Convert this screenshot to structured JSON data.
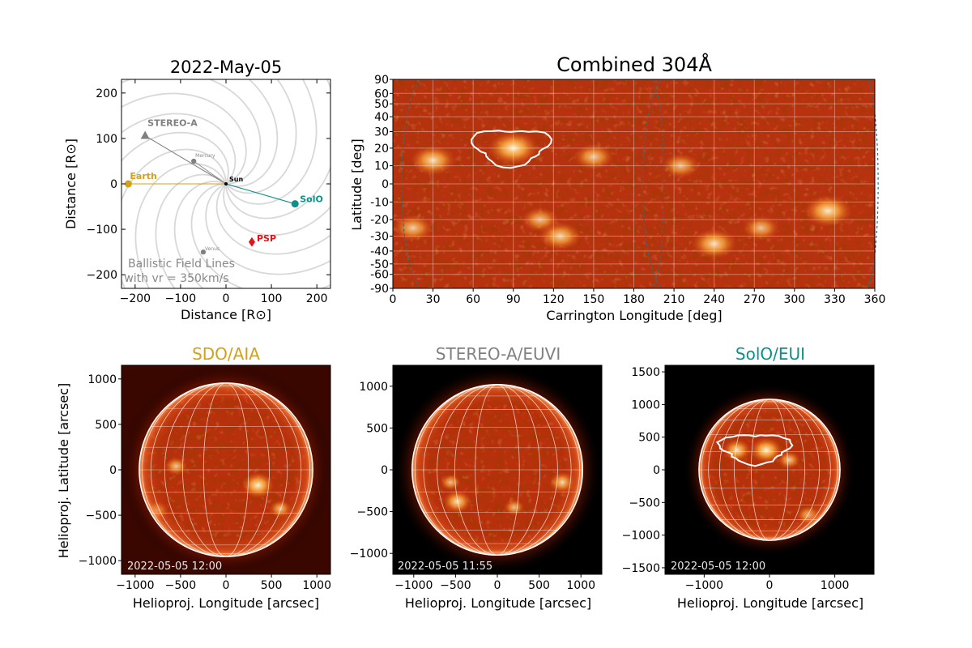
{
  "colors": {
    "earth": "#d4a017",
    "stereo": "#808080",
    "solo": "#0e8f88",
    "psp": "#e0141b",
    "field_lines": "#d8d8d8",
    "sun_map_dark": "#5a0f00",
    "sun_map_mid": "#c63a10",
    "sun_map_bright": "#ffe3a0"
  },
  "chart_data": [
    {
      "type": "scatter",
      "title": "2022-May-05",
      "xlabel": "Distance [R⊙]",
      "ylabel": "Distance [R⊙]",
      "xlim": [
        -230,
        230
      ],
      "ylim": [
        -230,
        230
      ],
      "xticks": [
        -200,
        -100,
        0,
        100,
        200
      ],
      "yticks": [
        -200,
        -100,
        0,
        100,
        200
      ],
      "xtick_labels": [
        "−200",
        "−100",
        "0",
        "100",
        "200"
      ],
      "ytick_labels": [
        "−200",
        "−100",
        "0",
        "100",
        "200"
      ],
      "annotation_line1": "Ballistic Field Lines",
      "annotation_line2": "with vr = 350km/s",
      "points": [
        {
          "name": "Sun",
          "x": 0,
          "y": 0,
          "marker": "circle",
          "color": "#000000"
        },
        {
          "name": "Earth",
          "x": -215,
          "y": 0,
          "marker": "circle",
          "color": "#d4a017"
        },
        {
          "name": "STEREO-A",
          "x": -178,
          "y": 106,
          "marker": "triangle",
          "color": "#808080"
        },
        {
          "name": "Mercury",
          "x": -71,
          "y": 50,
          "marker": "circle",
          "color": "#808080"
        },
        {
          "name": "SolO",
          "x": 152,
          "y": -44,
          "marker": "circle",
          "color": "#0e8f88"
        },
        {
          "name": "PSP",
          "x": 57,
          "y": -128,
          "marker": "diamond",
          "color": "#e0141b"
        },
        {
          "name": "Venus",
          "x": -50,
          "y": -150,
          "marker": "circle",
          "color": "#808080"
        }
      ],
      "spiral_count": 16
    },
    {
      "type": "heatmap",
      "title": "Combined 304Å",
      "xlabel": "Carrington Longitude [deg]",
      "ylabel": "Latitude [deg]",
      "xlim": [
        0,
        360
      ],
      "ylim": [
        -90,
        90
      ],
      "xticks": [
        0,
        30,
        60,
        90,
        120,
        150,
        180,
        210,
        240,
        270,
        300,
        330,
        360
      ],
      "yticks": [
        90,
        60,
        50,
        40,
        30,
        20,
        10,
        0,
        -10,
        -20,
        -30,
        -40,
        -50,
        -60,
        -90
      ],
      "ytick_labels": [
        "90",
        "60",
        "50",
        "40",
        "30",
        "20",
        "10",
        "0",
        "-10",
        "-20",
        "-30",
        "-40",
        "-50",
        "-60",
        "-90"
      ],
      "grid": true,
      "bright_regions": [
        {
          "lon": 30,
          "lat": 13,
          "strength": 0.8
        },
        {
          "lon": 90,
          "lat": 20,
          "strength": 1.0
        },
        {
          "lon": 150,
          "lat": 15,
          "strength": 0.6
        },
        {
          "lon": 215,
          "lat": 10,
          "strength": 0.5
        },
        {
          "lon": 325,
          "lat": -15,
          "strength": 0.9
        },
        {
          "lon": 15,
          "lat": -25,
          "strength": 0.6
        },
        {
          "lon": 110,
          "lat": -20,
          "strength": 0.5
        },
        {
          "lon": 125,
          "lat": -30,
          "strength": 0.7
        },
        {
          "lon": 240,
          "lat": -35,
          "strength": 0.8
        },
        {
          "lon": 275,
          "lat": -25,
          "strength": 0.5
        }
      ]
    },
    {
      "type": "heatmap",
      "title": "SDO/AIA",
      "title_color": "#d4a017",
      "timestamp": "2022-05-05 12:00",
      "xlabel": "Helioproj. Longitude [arcsec]",
      "ylabel": "Helioproj. Latitude [arcsec]",
      "xlim": [
        -1150,
        1150
      ],
      "ylim": [
        -1150,
        1150
      ],
      "xticks": [
        -1000,
        -500,
        0,
        500,
        1000
      ],
      "yticks": [
        -1000,
        -500,
        0,
        500,
        1000
      ],
      "xtick_labels": [
        "−1000",
        "−500",
        "0",
        "500",
        "1000"
      ],
      "ytick_labels": [
        "−1000",
        "−500",
        "0",
        "500",
        "1000"
      ],
      "disk_radius_arcsec": 955,
      "dark_background": false,
      "bright_spots": [
        {
          "x": 350,
          "y": -170,
          "s": 1.0
        },
        {
          "x": -770,
          "y": -450,
          "s": 0.6
        },
        {
          "x": -550,
          "y": 40,
          "s": 0.5
        },
        {
          "x": 600,
          "y": -430,
          "s": 0.5
        }
      ]
    },
    {
      "type": "heatmap",
      "title": "STEREO-A/EUVI",
      "title_color": "#808080",
      "timestamp": "2022-05-05 11:55",
      "xlabel": "Helioproj. Longitude [arcsec]",
      "ylabel": "",
      "xlim": [
        -1250,
        1250
      ],
      "ylim": [
        -1250,
        1250
      ],
      "xticks": [
        -1000,
        -500,
        0,
        500,
        1000
      ],
      "yticks": [
        -1000,
        -500,
        0,
        500,
        1000
      ],
      "xtick_labels": [
        "−1000",
        "−500",
        "0",
        "500",
        "1000"
      ],
      "ytick_labels": [
        "−1000",
        "−500",
        "0",
        "500",
        "1000"
      ],
      "disk_radius_arcsec": 1020,
      "dark_background": true,
      "bright_spots": [
        {
          "x": -480,
          "y": -380,
          "s": 0.8
        },
        {
          "x": 780,
          "y": -150,
          "s": 0.7
        },
        {
          "x": -560,
          "y": -150,
          "s": 0.4
        },
        {
          "x": 200,
          "y": -450,
          "s": 0.4
        }
      ]
    },
    {
      "type": "heatmap",
      "title": "SolO/EUI",
      "title_color": "#0e8f88",
      "timestamp": "2022-05-05 12:00",
      "xlabel": "Helioproj. Longitude [arcsec]",
      "ylabel": "",
      "xlim": [
        -1600,
        1600
      ],
      "ylim": [
        -1600,
        1600
      ],
      "xticks": [
        -1000,
        0,
        1000
      ],
      "yticks": [
        -1500,
        -1000,
        -500,
        0,
        500,
        1000,
        1500
      ],
      "xtick_labels": [
        "−1000",
        "0",
        "1000"
      ],
      "ytick_labels": [
        "−1500",
        "−1000",
        "−500",
        "0",
        "500",
        "1000",
        "1500"
      ],
      "disk_radius_arcsec": 1080,
      "dark_background": true,
      "bright_spots": [
        {
          "x": -500,
          "y": 300,
          "s": 0.8
        },
        {
          "x": -50,
          "y": 300,
          "s": 1.0
        },
        {
          "x": 600,
          "y": -700,
          "s": 0.6
        },
        {
          "x": 300,
          "y": 150,
          "s": 0.5
        }
      ]
    }
  ]
}
